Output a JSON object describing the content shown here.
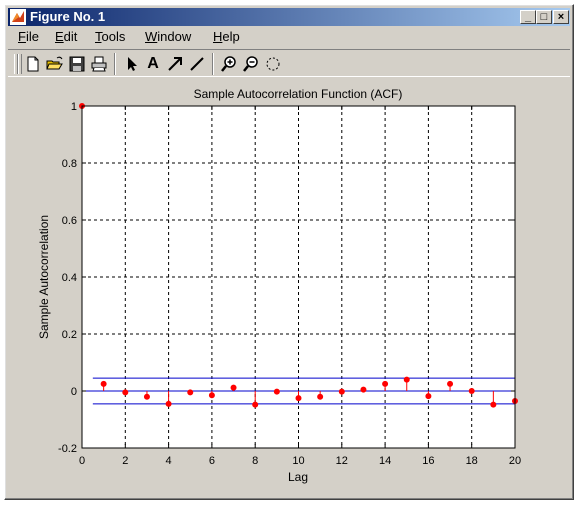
{
  "window": {
    "title": "Figure No. 1",
    "controls": {
      "minimize": "_",
      "maximize": "□",
      "close": "×"
    }
  },
  "menu": {
    "items": [
      {
        "label": "File",
        "accel": "F",
        "rest": "ile"
      },
      {
        "label": "Edit",
        "accel": "E",
        "rest": "dit"
      },
      {
        "label": "Tools",
        "accel": "T",
        "rest": "ools"
      },
      {
        "label": "Window",
        "accel": "W",
        "rest": "indow"
      },
      {
        "label": "Help",
        "accel": "H",
        "rest": "elp"
      }
    ]
  },
  "toolbar": {
    "icons": [
      "new-file-icon",
      "open-folder-icon",
      "save-disk-icon",
      "print-icon",
      "select-arrow-icon",
      "insert-text-icon",
      "insert-arrow-icon",
      "insert-line-icon",
      "zoom-in-icon",
      "zoom-out-icon",
      "rotate-icon"
    ],
    "text_tool_label": "A"
  },
  "colors": {
    "stem": "#ff0000",
    "marker": "#ff0000",
    "bound": "#0000cc",
    "grid": "#000000"
  },
  "chart_data": {
    "type": "stem",
    "title": "Sample Autocorrelation Function (ACF)",
    "xlabel": "Lag",
    "ylabel": "Sample Autocorrelation",
    "xlim": [
      0,
      20
    ],
    "ylim": [
      -0.2,
      1
    ],
    "xticks": [
      0,
      2,
      4,
      6,
      8,
      10,
      12,
      14,
      16,
      18,
      20
    ],
    "yticks": [
      -0.2,
      0,
      0.2,
      0.4,
      0.6,
      0.8,
      1
    ],
    "grid": true,
    "lags": [
      0,
      1,
      2,
      3,
      4,
      5,
      6,
      7,
      8,
      9,
      10,
      11,
      12,
      13,
      14,
      15,
      16,
      17,
      18,
      19,
      20
    ],
    "acf": [
      1.0,
      0.025,
      -0.005,
      -0.02,
      -0.045,
      -0.005,
      -0.015,
      0.012,
      -0.048,
      -0.002,
      -0.025,
      -0.02,
      -0.002,
      0.005,
      0.025,
      0.04,
      -0.018,
      0.025,
      0.0,
      -0.048,
      -0.035
    ],
    "confidence_bounds": [
      0.045,
      -0.045
    ]
  }
}
